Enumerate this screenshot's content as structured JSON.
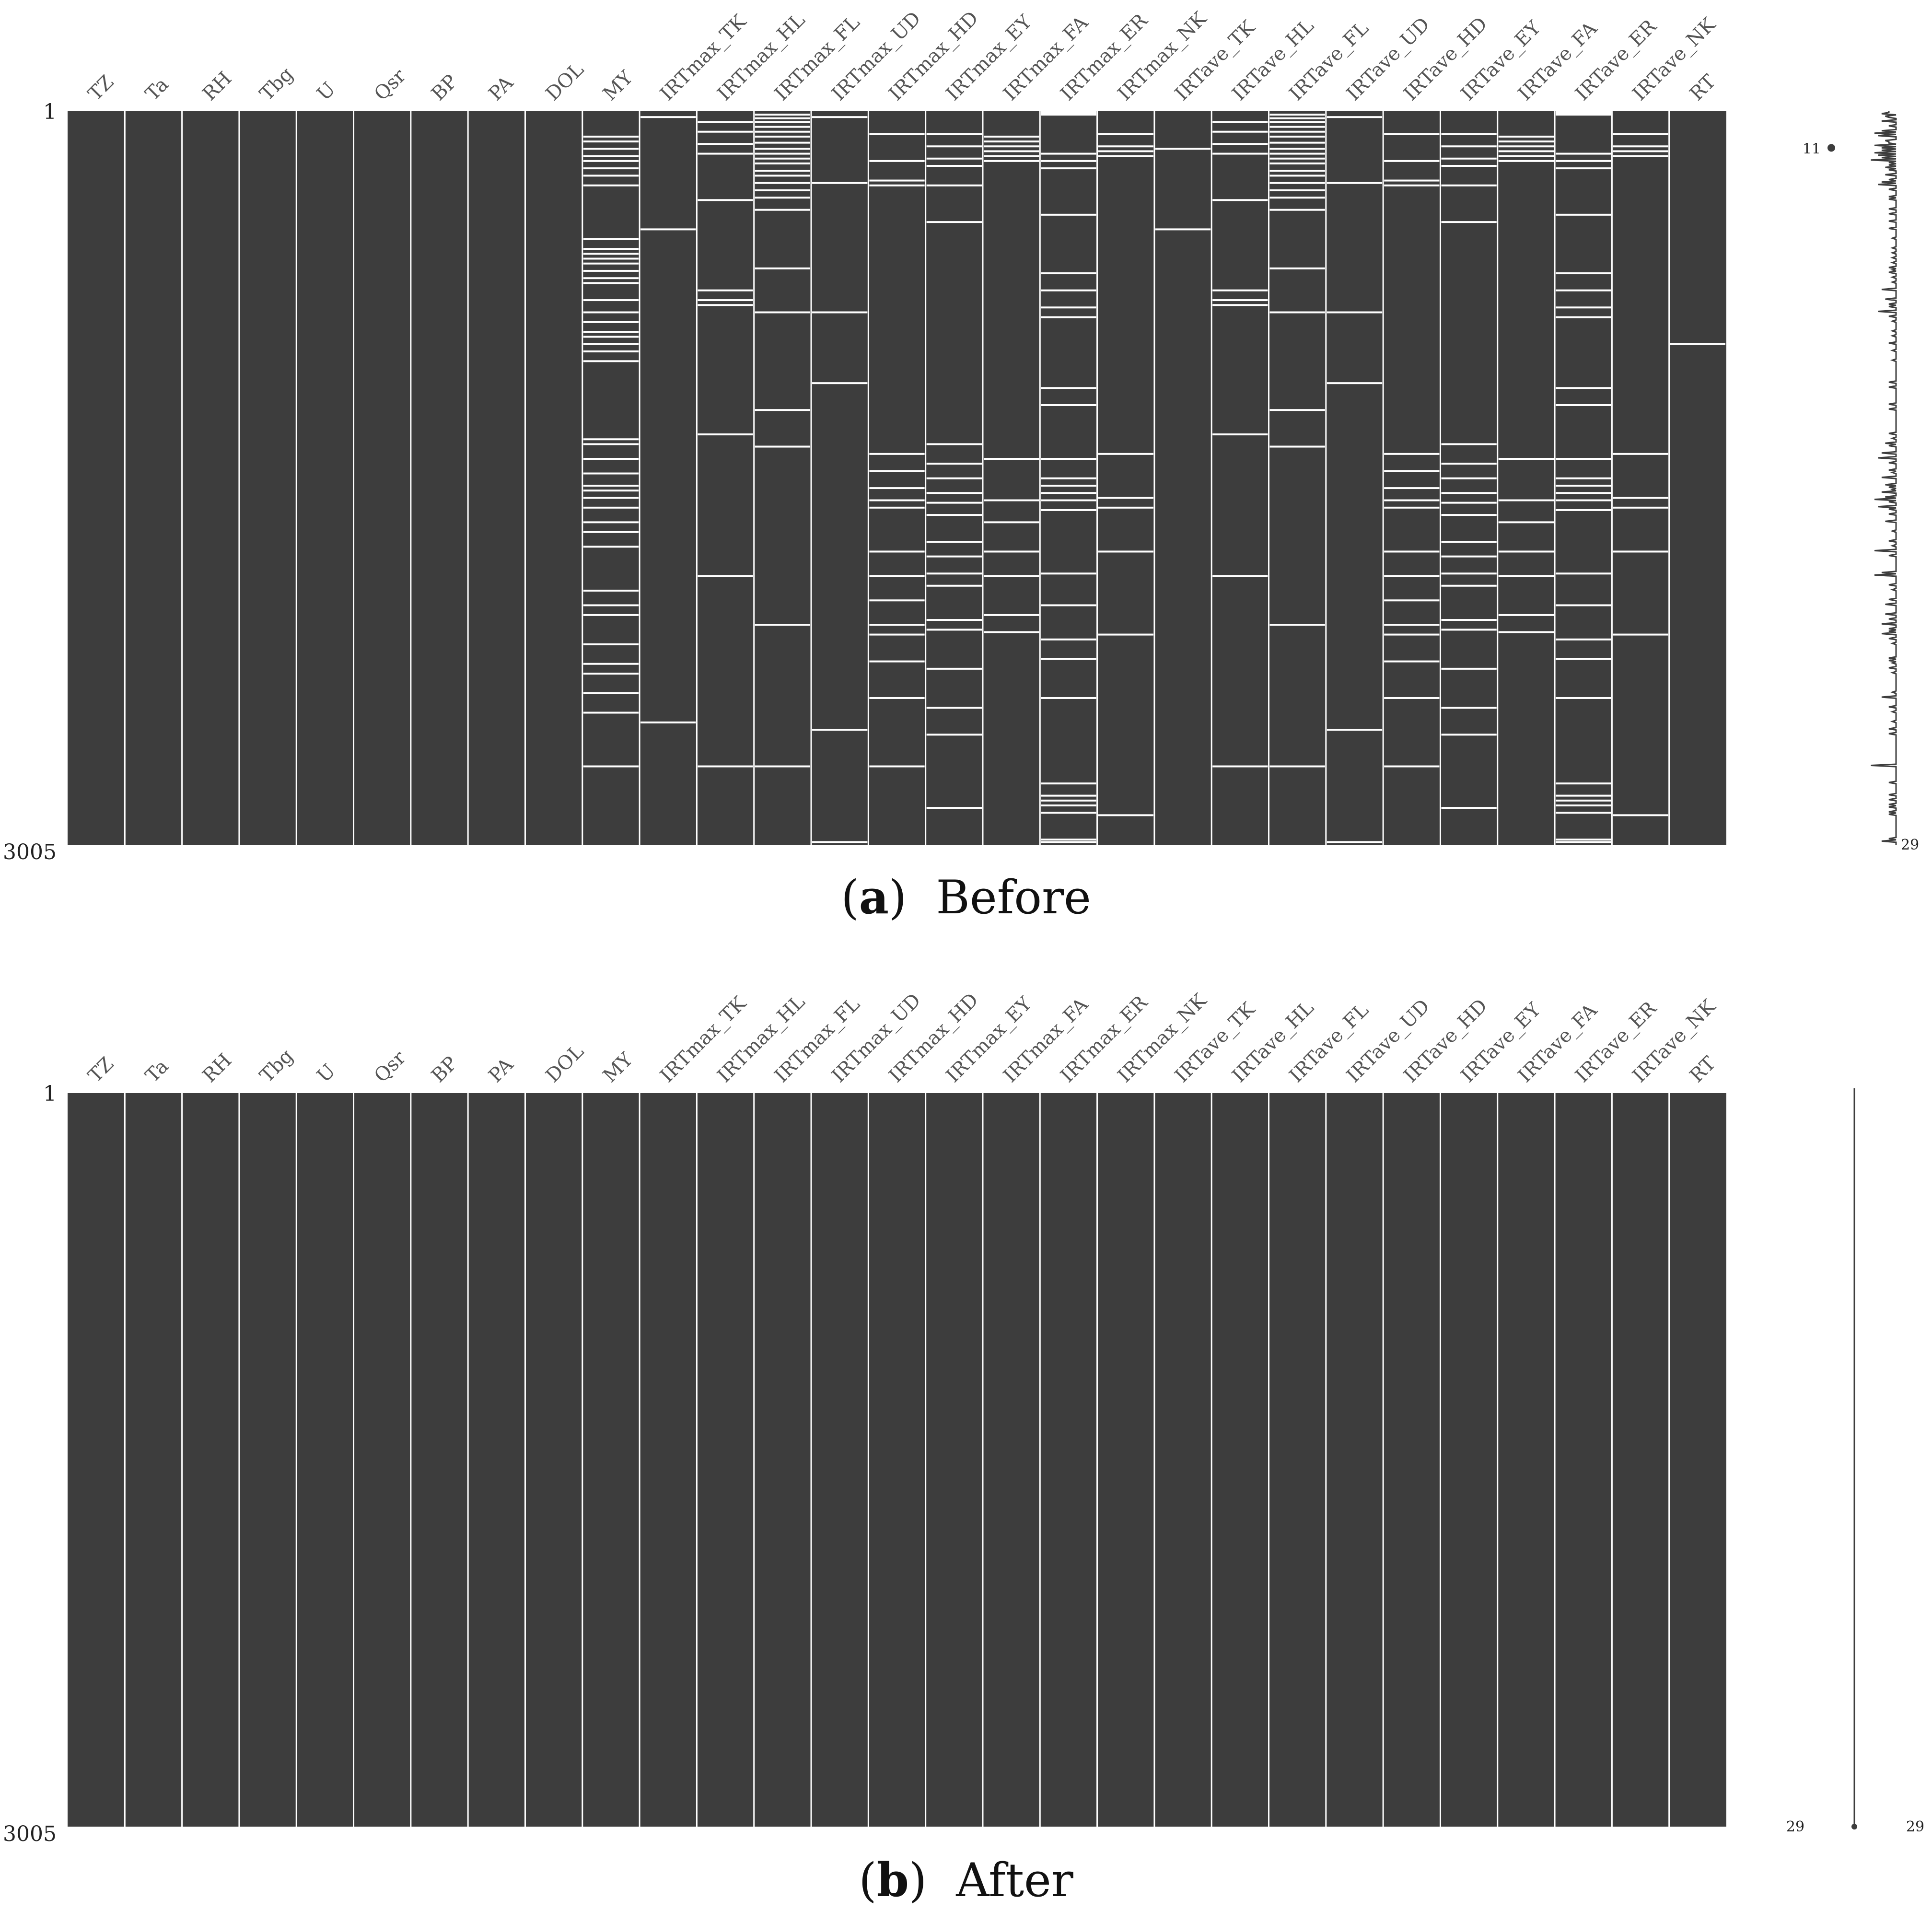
{
  "colors": {
    "present": "#3d3d3d",
    "missing": "#ffffff",
    "label": "#555555"
  },
  "chart_data": [
    {
      "type": "heatmap",
      "subtype": "missing-value-matrix",
      "caption_letter": "a",
      "caption_text": "Before",
      "columns": [
        "TZ",
        "Ta",
        "RH",
        "Tbg",
        "U",
        "Qsr",
        "BP",
        "PA",
        "DOL",
        "MY",
        "IRTmax_TK",
        "IRTmax_HL",
        "IRTmax_FL",
        "IRTmax_UD",
        "IRTmax_HD",
        "IRTmax_EY",
        "IRTmax_FA",
        "IRTmax_ER",
        "IRTmax_NK",
        "IRTave_TK",
        "IRTave_HL",
        "IRTave_FL",
        "IRTave_UD",
        "IRTave_HD",
        "IRTave_EY",
        "IRTave_FA",
        "IRTave_ER",
        "IRTave_NK",
        "RT"
      ],
      "row_range": [
        1,
        3005
      ],
      "row_labels": [
        "1",
        "3005"
      ],
      "missing_rows": {
        "MY": [
          100,
          120,
          150,
          180,
          200,
          230,
          260,
          300,
          520,
          560,
          580,
          600,
          620,
          650,
          680,
          700,
          770,
          820,
          860,
          900,
          920,
          950,
          980,
          1020,
          1340,
          1360,
          1420,
          1480,
          1530,
          1550,
          1580,
          1620,
          1680,
          1720,
          1780,
          1960,
          2020,
          2060,
          2180,
          2260,
          2300,
          2380,
          2460,
          2680
        ],
        "IRTmax_TK": [
          20,
          480,
          2500
        ],
        "IRTmax_HL": [
          40,
          80,
          130,
          170,
          360,
          730,
          770,
          790,
          1320,
          1900,
          2680
        ],
        "IRTmax_FL": [
          10,
          25,
          40,
          60,
          80,
          100,
          125,
          150,
          170,
          190,
          210,
          240,
          260,
          290,
          320,
          350,
          400,
          640,
          820,
          1220,
          1370,
          2100,
          2680
        ],
        "IRTmax_UD": [
          20,
          290,
          820,
          1110,
          2530,
          2990
        ],
        "IRTmax_HD": [
          90,
          200,
          280,
          300,
          1400,
          1470,
          1540,
          1590,
          1620,
          1800,
          1900,
          2000,
          2100,
          2140,
          2250,
          2400,
          2680
        ],
        "IRTmax_EY": [
          90,
          140,
          190,
          220,
          300,
          450,
          1360,
          1440,
          1500,
          1560,
          1600,
          1650,
          1760,
          1820,
          1890,
          1940,
          2080,
          2120,
          2280,
          2440,
          2550,
          2850
        ],
        "IRTmax_FA": [
          100,
          120,
          140,
          160,
          180,
          200,
          1420,
          1590,
          1680,
          1800,
          1900,
          2060,
          2130
        ],
        "IRTmax_ER": [
          0,
          5,
          10,
          170,
          200,
          230,
          420,
          660,
          730,
          800,
          840,
          1130,
          1200,
          1420,
          1500,
          1530,
          1560,
          1590,
          1630,
          1890,
          2020,
          2160,
          2240,
          2400,
          2750,
          2800,
          2820,
          2840,
          2870,
          2980,
          2990
        ],
        "IRTmax_NK": [
          90,
          140,
          160,
          180,
          1400,
          1580,
          1620,
          1800,
          2140,
          2880
        ],
        "IRTave_TK": [
          150,
          480
        ],
        "IRTave_HL": [
          40,
          80,
          130,
          170,
          360,
          730,
          770,
          790,
          1320,
          1900,
          2680
        ],
        "IRTave_FL": [
          10,
          25,
          40,
          60,
          80,
          100,
          125,
          150,
          170,
          190,
          210,
          240,
          260,
          290,
          320,
          350,
          400,
          640,
          820,
          1220,
          1370,
          2100,
          2680
        ],
        "IRTave_UD": [
          20,
          290,
          820,
          1110,
          2530,
          2990
        ],
        "IRTave_HD": [
          90,
          200,
          280,
          300,
          1400,
          1470,
          1540,
          1590,
          1620,
          1800,
          1900,
          2000,
          2100,
          2140,
          2250,
          2400,
          2680
        ],
        "IRTave_EY": [
          90,
          140,
          190,
          220,
          300,
          450,
          1360,
          1440,
          1500,
          1560,
          1600,
          1650,
          1760,
          1820,
          1890,
          1940,
          2080,
          2120,
          2280,
          2440,
          2550,
          2850
        ],
        "IRTave_FA": [
          100,
          120,
          140,
          160,
          180,
          200,
          1420,
          1590,
          1680,
          1800,
          1900,
          2060,
          2130
        ],
        "IRTave_ER": [
          0,
          5,
          10,
          170,
          200,
          230,
          420,
          660,
          730,
          800,
          840,
          1130,
          1200,
          1420,
          1500,
          1530,
          1560,
          1590,
          1630,
          1890,
          2020,
          2160,
          2240,
          2400,
          2750,
          2800,
          2820,
          2840,
          2870,
          2980,
          2990
        ],
        "IRTave_NK": [
          90,
          140,
          160,
          180,
          1400,
          1580,
          1620,
          1800,
          2140,
          2880
        ],
        "RT": [
          950
        ]
      },
      "sparkline": {
        "min_label": "11",
        "max_label": "29",
        "min_value": 11,
        "max_value": 29,
        "min_row": 150
      }
    },
    {
      "type": "heatmap",
      "subtype": "missing-value-matrix",
      "caption_letter": "b",
      "caption_text": "After",
      "columns": [
        "TZ",
        "Ta",
        "RH",
        "Tbg",
        "U",
        "Qsr",
        "BP",
        "PA",
        "DOL",
        "MY",
        "IRTmax_TK",
        "IRTmax_HL",
        "IRTmax_FL",
        "IRTmax_UD",
        "IRTmax_HD",
        "IRTmax_EY",
        "IRTmax_FA",
        "IRTmax_ER",
        "IRTmax_NK",
        "IRTave_TK",
        "IRTave_HL",
        "IRTave_FL",
        "IRTave_UD",
        "IRTave_HD",
        "IRTave_EY",
        "IRTave_FA",
        "IRTave_ER",
        "IRTave_NK",
        "RT"
      ],
      "row_range": [
        1,
        3005
      ],
      "row_labels": [
        "1",
        "3005"
      ],
      "missing_rows": {},
      "sparkline": {
        "min_label": "29",
        "max_label": "29",
        "min_value": 29,
        "max_value": 29
      }
    }
  ]
}
